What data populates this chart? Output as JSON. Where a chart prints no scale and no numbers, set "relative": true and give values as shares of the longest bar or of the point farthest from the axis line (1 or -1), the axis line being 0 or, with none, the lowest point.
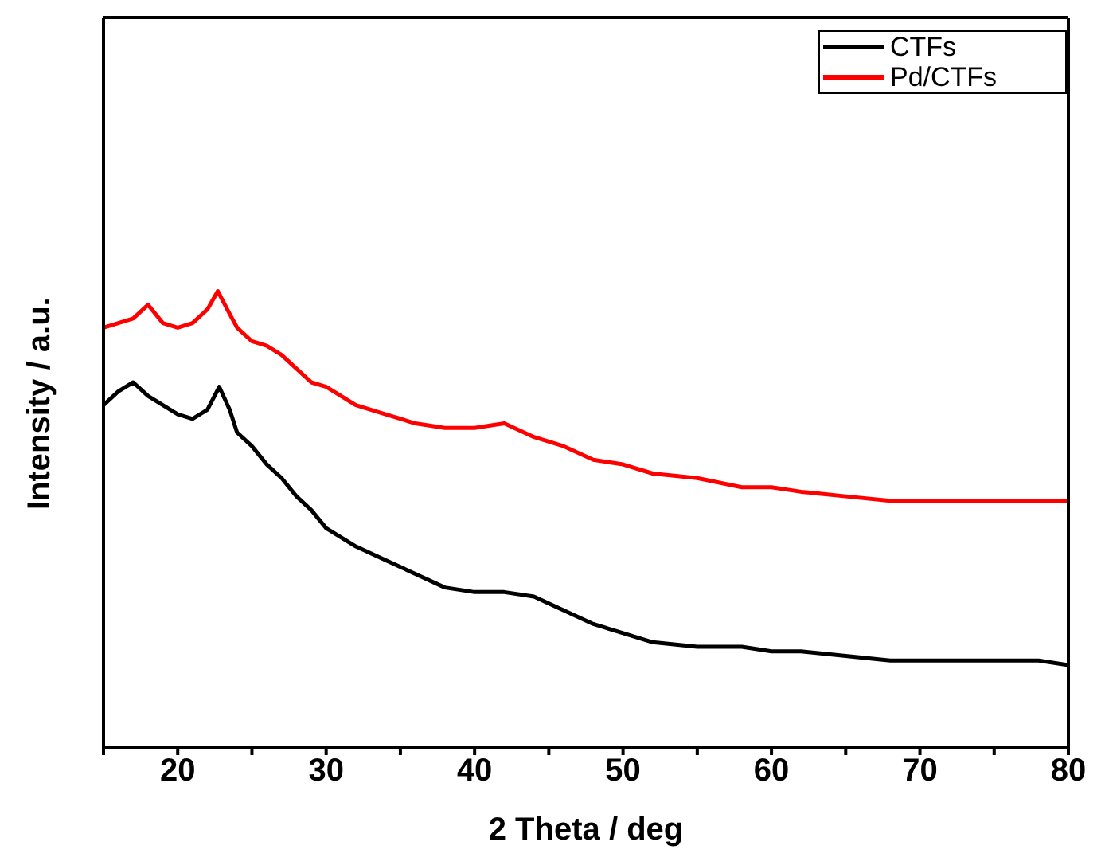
{
  "chart_data": {
    "type": "line",
    "relative": true,
    "xlabel": "2 Theta / deg",
    "ylabel": "Intensity / a.u.",
    "xlim": [
      15,
      80
    ],
    "xticks": [
      {
        "value": 15,
        "label": null
      },
      20,
      {
        "value": 25,
        "label": null
      },
      30,
      {
        "value": 35,
        "label": null
      },
      40,
      {
        "value": 45,
        "label": null
      },
      50,
      {
        "value": 55,
        "label": null
      },
      60,
      {
        "value": 65,
        "label": null
      },
      70,
      {
        "value": 75,
        "label": null
      },
      80
    ],
    "legend": "top right",
    "marker": "none",
    "line_style": "solid",
    "series": [
      {
        "name": "CTFs",
        "color": "#000000",
        "x": [
          15,
          16,
          17,
          18,
          19,
          20,
          21,
          22,
          22.8,
          23.5,
          24,
          25,
          26,
          27,
          28,
          29,
          30,
          32,
          34,
          36,
          38,
          40,
          42,
          44,
          46,
          48,
          50,
          52,
          55,
          58,
          60,
          62,
          65,
          68,
          70,
          72,
          75,
          78,
          80
        ],
        "values": [
          0.75,
          0.78,
          0.8,
          0.77,
          0.75,
          0.73,
          0.72,
          0.74,
          0.79,
          0.74,
          0.69,
          0.66,
          0.62,
          0.59,
          0.55,
          0.52,
          0.48,
          0.44,
          0.41,
          0.38,
          0.35,
          0.34,
          0.34,
          0.33,
          0.3,
          0.27,
          0.25,
          0.23,
          0.22,
          0.22,
          0.21,
          0.21,
          0.2,
          0.19,
          0.19,
          0.19,
          0.19,
          0.19,
          0.18
        ]
      },
      {
        "name": "Pd/CTFs",
        "color": "#ff0000",
        "x": [
          15,
          16,
          17,
          18,
          19,
          20,
          21,
          22,
          22.7,
          23.5,
          24,
          25,
          26,
          27,
          28,
          29,
          30,
          32,
          34,
          36,
          38,
          40,
          42,
          44,
          46,
          48,
          50,
          52,
          55,
          58,
          60,
          62,
          65,
          68,
          70,
          72,
          75,
          78,
          80
        ],
        "values": [
          0.92,
          0.93,
          0.94,
          0.97,
          0.93,
          0.92,
          0.93,
          0.96,
          1,
          0.95,
          0.92,
          0.89,
          0.88,
          0.86,
          0.83,
          0.8,
          0.79,
          0.75,
          0.73,
          0.71,
          0.7,
          0.7,
          0.71,
          0.68,
          0.66,
          0.63,
          0.62,
          0.6,
          0.59,
          0.57,
          0.57,
          0.56,
          0.55,
          0.54,
          0.54,
          0.54,
          0.54,
          0.54,
          0.54
        ]
      }
    ]
  }
}
